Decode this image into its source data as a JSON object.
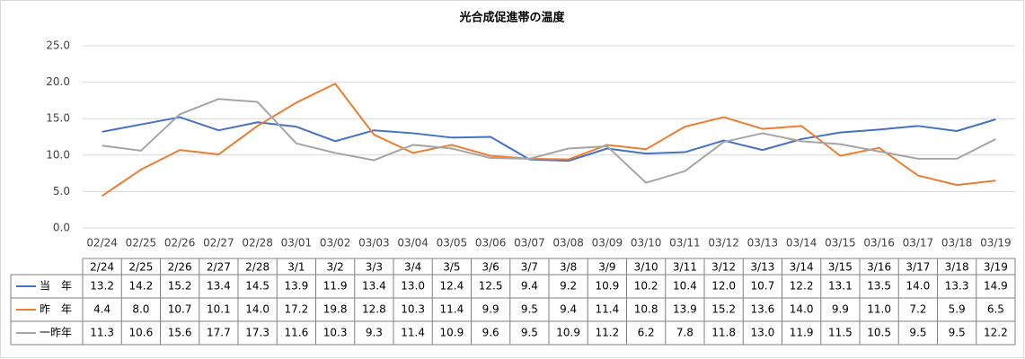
{
  "chart_data": {
    "type": "line",
    "title": "光合成促進帯の温度",
    "categories": [
      "02/24",
      "02/25",
      "02/26",
      "02/27",
      "02/28",
      "03/01",
      "03/02",
      "03/03",
      "03/04",
      "03/05",
      "03/06",
      "03/07",
      "03/08",
      "03/09",
      "03/10",
      "03/11",
      "03/12",
      "03/13",
      "03/14",
      "03/15",
      "03/16",
      "03/17",
      "03/18",
      "03/19"
    ],
    "table_categories": [
      "2/24",
      "2/25",
      "2/26",
      "2/27",
      "2/28",
      "3/1",
      "3/2",
      "3/3",
      "3/4",
      "3/5",
      "3/6",
      "3/7",
      "3/8",
      "3/9",
      "3/10",
      "3/11",
      "3/12",
      "3/13",
      "3/14",
      "3/15",
      "3/16",
      "3/17",
      "3/18",
      "3/19"
    ],
    "series": [
      {
        "name": "当　年",
        "color": "#4472c4",
        "values": [
          13.2,
          14.2,
          15.2,
          13.4,
          14.5,
          13.9,
          11.9,
          13.4,
          13.0,
          12.4,
          12.5,
          9.4,
          9.2,
          10.9,
          10.2,
          10.4,
          12.0,
          10.7,
          12.2,
          13.1,
          13.5,
          14.0,
          13.3,
          14.9
        ],
        "value_labels": [
          "13.2",
          "14.2",
          "15.2",
          "13.4",
          "14.5",
          "13.9",
          "11.9",
          "13.4",
          "13.0",
          "12.4",
          "12.5",
          "9.4",
          "9.2",
          "10.9",
          "10.2",
          "10.4",
          "12.0",
          "10.7",
          "12.2",
          "13.1",
          "13.5",
          "14.0",
          "13.3",
          "14.9"
        ]
      },
      {
        "name": "昨　年",
        "color": "#ed7d31",
        "values": [
          4.4,
          8.0,
          10.7,
          10.1,
          14.0,
          17.2,
          19.8,
          12.8,
          10.3,
          11.4,
          9.9,
          9.5,
          9.4,
          11.4,
          10.8,
          13.9,
          15.2,
          13.6,
          14.0,
          9.9,
          11.0,
          7.2,
          5.9,
          6.5
        ],
        "value_labels": [
          "4.4",
          "8.0",
          "10.7",
          "10.1",
          "14.0",
          "17.2",
          "19.8",
          "12.8",
          "10.3",
          "11.4",
          "9.9",
          "9.5",
          "9.4",
          "11.4",
          "10.8",
          "13.9",
          "15.2",
          "13.6",
          "14.0",
          "9.9",
          "11.0",
          "7.2",
          "5.9",
          "6.5"
        ]
      },
      {
        "name": "一昨年",
        "color": "#a5a5a5",
        "values": [
          11.3,
          10.6,
          15.6,
          17.7,
          17.3,
          11.6,
          10.3,
          9.3,
          11.4,
          10.9,
          9.6,
          9.5,
          10.9,
          11.2,
          6.2,
          7.8,
          11.8,
          13.0,
          11.9,
          11.5,
          10.5,
          9.5,
          9.5,
          12.2
        ],
        "value_labels": [
          "11.3",
          "10.6",
          "15.6",
          "17.7",
          "17.3",
          "11.6",
          "10.3",
          "9.3",
          "11.4",
          "10.9",
          "9.6",
          "9.5",
          "10.9",
          "11.2",
          "6.2",
          "7.8",
          "11.8",
          "13.0",
          "11.9",
          "11.5",
          "10.5",
          "9.5",
          "9.5",
          "12.2"
        ]
      }
    ],
    "ylim": [
      0,
      25
    ],
    "yticks": [
      {
        "value": 0,
        "label": "0.0"
      },
      {
        "value": 5,
        "label": "5.0"
      },
      {
        "value": 10,
        "label": "10.0"
      },
      {
        "value": 15,
        "label": "15.0"
      },
      {
        "value": 20,
        "label": "20.0"
      },
      {
        "value": 25,
        "label": "25.0"
      }
    ],
    "grid": true
  }
}
